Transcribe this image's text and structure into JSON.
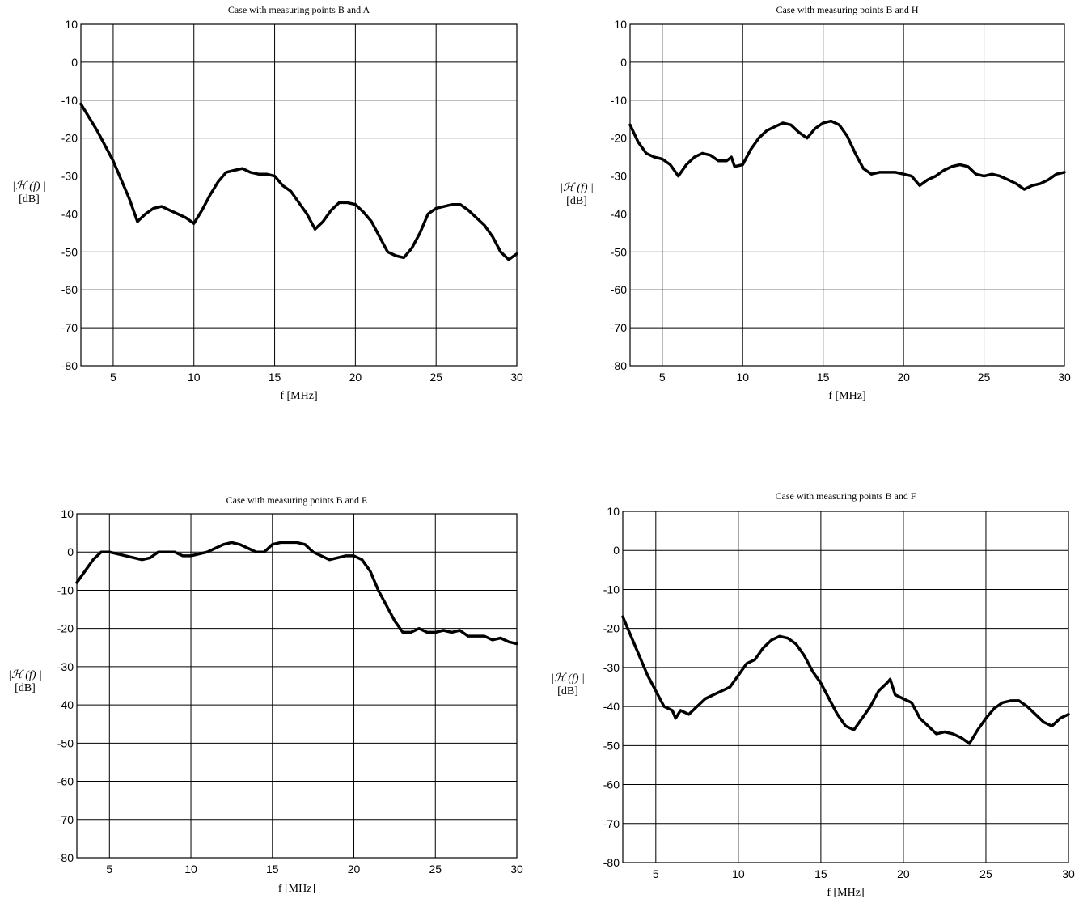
{
  "chart_data": [
    {
      "type": "line",
      "title": "Case with measuring points B and A",
      "xlabel": "f [MHz]",
      "ylabel": [
        "|ℋ (f) |",
        "[dB]"
      ],
      "xlim": [
        3,
        30
      ],
      "ylim": [
        -80,
        10
      ],
      "xticks": [
        5,
        10,
        15,
        20,
        25,
        30
      ],
      "yticks": [
        10,
        0,
        -10,
        -20,
        -30,
        -40,
        -50,
        -60,
        -70,
        -80
      ],
      "grid": true,
      "color": "#000000",
      "series": [
        {
          "x": [
            3,
            4,
            5,
            6,
            6.5,
            7,
            7.5,
            8,
            8.5,
            9,
            9.5,
            10,
            10.5,
            11,
            11.5,
            12,
            12.5,
            13,
            13.5,
            14,
            14.5,
            15,
            15.5,
            16,
            16.5,
            17,
            17.5,
            18,
            18.5,
            19,
            19.5,
            20,
            20.5,
            21,
            21.5,
            22,
            22.5,
            23,
            23.5,
            24,
            24.5,
            25,
            25.5,
            26,
            26.5,
            27,
            27.5,
            28,
            28.5,
            29,
            29.5,
            30
          ],
          "y": [
            -11,
            -18,
            -26,
            -36,
            -42,
            -40,
            -38.5,
            -38,
            -39,
            -40,
            -41,
            -42.5,
            -39,
            -35,
            -31.5,
            -29,
            -28.5,
            -28,
            -29,
            -29.5,
            -29.5,
            -30,
            -32.5,
            -34,
            -37,
            -40,
            -44,
            -42,
            -39,
            -37,
            -37,
            -37.5,
            -39.5,
            -42,
            -46,
            -50,
            -51,
            -51.5,
            -49,
            -45,
            -40,
            -38.5,
            -38,
            -37.5,
            -37.5,
            -39,
            -41,
            -43,
            -46,
            -50,
            -52,
            -50.5
          ]
        }
      ]
    },
    {
      "type": "line",
      "title": "Case with measuring points B and H",
      "xlabel": "f [MHz]",
      "ylabel": [
        "|ℋ (f) |",
        "[dB]"
      ],
      "xlim": [
        3,
        30
      ],
      "ylim": [
        -80,
        10
      ],
      "xticks": [
        5,
        10,
        15,
        20,
        25,
        30
      ],
      "yticks": [
        10,
        0,
        -10,
        -20,
        -30,
        -40,
        -50,
        -60,
        -70,
        -80
      ],
      "grid": true,
      "color": "#000000",
      "series": [
        {
          "x": [
            3,
            3.5,
            4,
            4.5,
            5,
            5.5,
            6,
            6.5,
            7,
            7.5,
            8,
            8.5,
            9,
            9.3,
            9.5,
            10,
            10.5,
            11,
            11.5,
            12,
            12.5,
            13,
            13.5,
            14,
            14.5,
            15,
            15.5,
            16,
            16.5,
            17,
            17.5,
            18,
            18.5,
            19,
            19.5,
            20,
            20.5,
            21,
            21.5,
            22,
            22.5,
            23,
            23.5,
            24,
            24.5,
            25,
            25.5,
            26,
            26.5,
            27,
            27.5,
            28,
            28.5,
            29,
            29.5,
            30
          ],
          "y": [
            -16.5,
            -21,
            -24,
            -25,
            -25.5,
            -27,
            -30,
            -27,
            -25,
            -24,
            -24.5,
            -26,
            -26,
            -25,
            -27.5,
            -27,
            -23,
            -20,
            -18,
            -17,
            -16,
            -16.5,
            -18.5,
            -20,
            -17.5,
            -16,
            -15.5,
            -16.5,
            -19.5,
            -24,
            -28,
            -29.5,
            -29,
            -29,
            -29,
            -29.5,
            -30,
            -32.5,
            -31,
            -30,
            -28.5,
            -27.5,
            -27,
            -27.5,
            -29.5,
            -30,
            -29.5,
            -30,
            -31,
            -32,
            -33.5,
            -32.5,
            -32,
            -31,
            -29.5,
            -29
          ]
        }
      ]
    },
    {
      "type": "line",
      "title": "Case with measuring points B and E",
      "xlabel": "f [MHz]",
      "ylabel": [
        "|ℋ (f) |",
        "[dB]"
      ],
      "xlim": [
        3,
        30
      ],
      "ylim": [
        -80,
        10
      ],
      "xticks": [
        5,
        10,
        15,
        20,
        25,
        30
      ],
      "yticks": [
        10,
        0,
        -10,
        -20,
        -30,
        -40,
        -50,
        -60,
        -70,
        -80
      ],
      "grid": true,
      "color": "#000000",
      "series": [
        {
          "x": [
            3,
            3.5,
            4,
            4.5,
            5,
            5.5,
            6,
            6.5,
            7,
            7.5,
            8,
            8.5,
            9,
            9.5,
            10,
            10.5,
            11,
            11.5,
            12,
            12.5,
            13,
            13.5,
            14,
            14.5,
            15,
            15.5,
            16,
            16.5,
            17,
            17.5,
            18,
            18.5,
            19,
            19.5,
            20,
            20.5,
            21,
            21.5,
            22,
            22.5,
            23,
            23.5,
            24,
            24.5,
            25,
            25.5,
            26,
            26.5,
            27,
            27.5,
            28,
            28.5,
            29,
            29.5,
            30
          ],
          "y": [
            -8,
            -5,
            -2,
            0,
            0,
            -0.5,
            -1,
            -1.5,
            -2,
            -1.5,
            0,
            0,
            0,
            -1,
            -1,
            -0.5,
            0,
            1,
            2,
            2.5,
            2,
            1,
            0,
            0,
            2,
            2.5,
            2.5,
            2.5,
            2,
            0,
            -1,
            -2,
            -1.5,
            -1,
            -1,
            -2,
            -5,
            -10,
            -14,
            -18,
            -21,
            -21,
            -20,
            -21,
            -21,
            -20.5,
            -21,
            -20.5,
            -22,
            -22,
            -22,
            -23,
            -22.5,
            -23.5,
            -24
          ]
        }
      ]
    },
    {
      "type": "line",
      "title": "Case with measuring points B and F",
      "xlabel": "f [MHz]",
      "ylabel": [
        "|ℋ (f) |",
        "[dB]"
      ],
      "xlim": [
        3,
        30
      ],
      "ylim": [
        -80,
        10
      ],
      "xticks": [
        5,
        10,
        15,
        20,
        25,
        30
      ],
      "yticks": [
        10,
        0,
        -10,
        -20,
        -30,
        -40,
        -50,
        -60,
        -70,
        -80
      ],
      "grid": true,
      "color": "#000000",
      "series": [
        {
          "x": [
            3,
            3.5,
            4,
            4.5,
            5,
            5.5,
            6,
            6.2,
            6.5,
            7,
            7.5,
            8,
            8.5,
            9,
            9.5,
            10,
            10.5,
            11,
            11.5,
            12,
            12.5,
            13,
            13.5,
            14,
            14.5,
            15,
            15.5,
            16,
            16.5,
            17,
            17.5,
            18,
            18.5,
            19,
            19.2,
            19.5,
            20,
            20.5,
            21,
            21.5,
            22,
            22.5,
            23,
            23.5,
            24,
            24.5,
            25,
            25.5,
            26,
            26.5,
            27,
            27.5,
            28,
            28.5,
            29,
            29.5,
            30
          ],
          "y": [
            -17,
            -22,
            -27,
            -32,
            -36,
            -40,
            -41,
            -43,
            -41,
            -42,
            -40,
            -38,
            -37,
            -36,
            -35,
            -32,
            -29,
            -28,
            -25,
            -23,
            -22,
            -22.5,
            -24,
            -27,
            -31,
            -34,
            -38,
            -42,
            -45,
            -46,
            -43,
            -40,
            -36,
            -34,
            -33,
            -37,
            -38,
            -39,
            -43,
            -45,
            -47,
            -46.5,
            -47,
            -48,
            -49.5,
            -46,
            -43,
            -40.5,
            -39,
            -38.5,
            -38.5,
            -40,
            -42,
            -44,
            -45,
            -43,
            -42
          ]
        }
      ]
    }
  ]
}
